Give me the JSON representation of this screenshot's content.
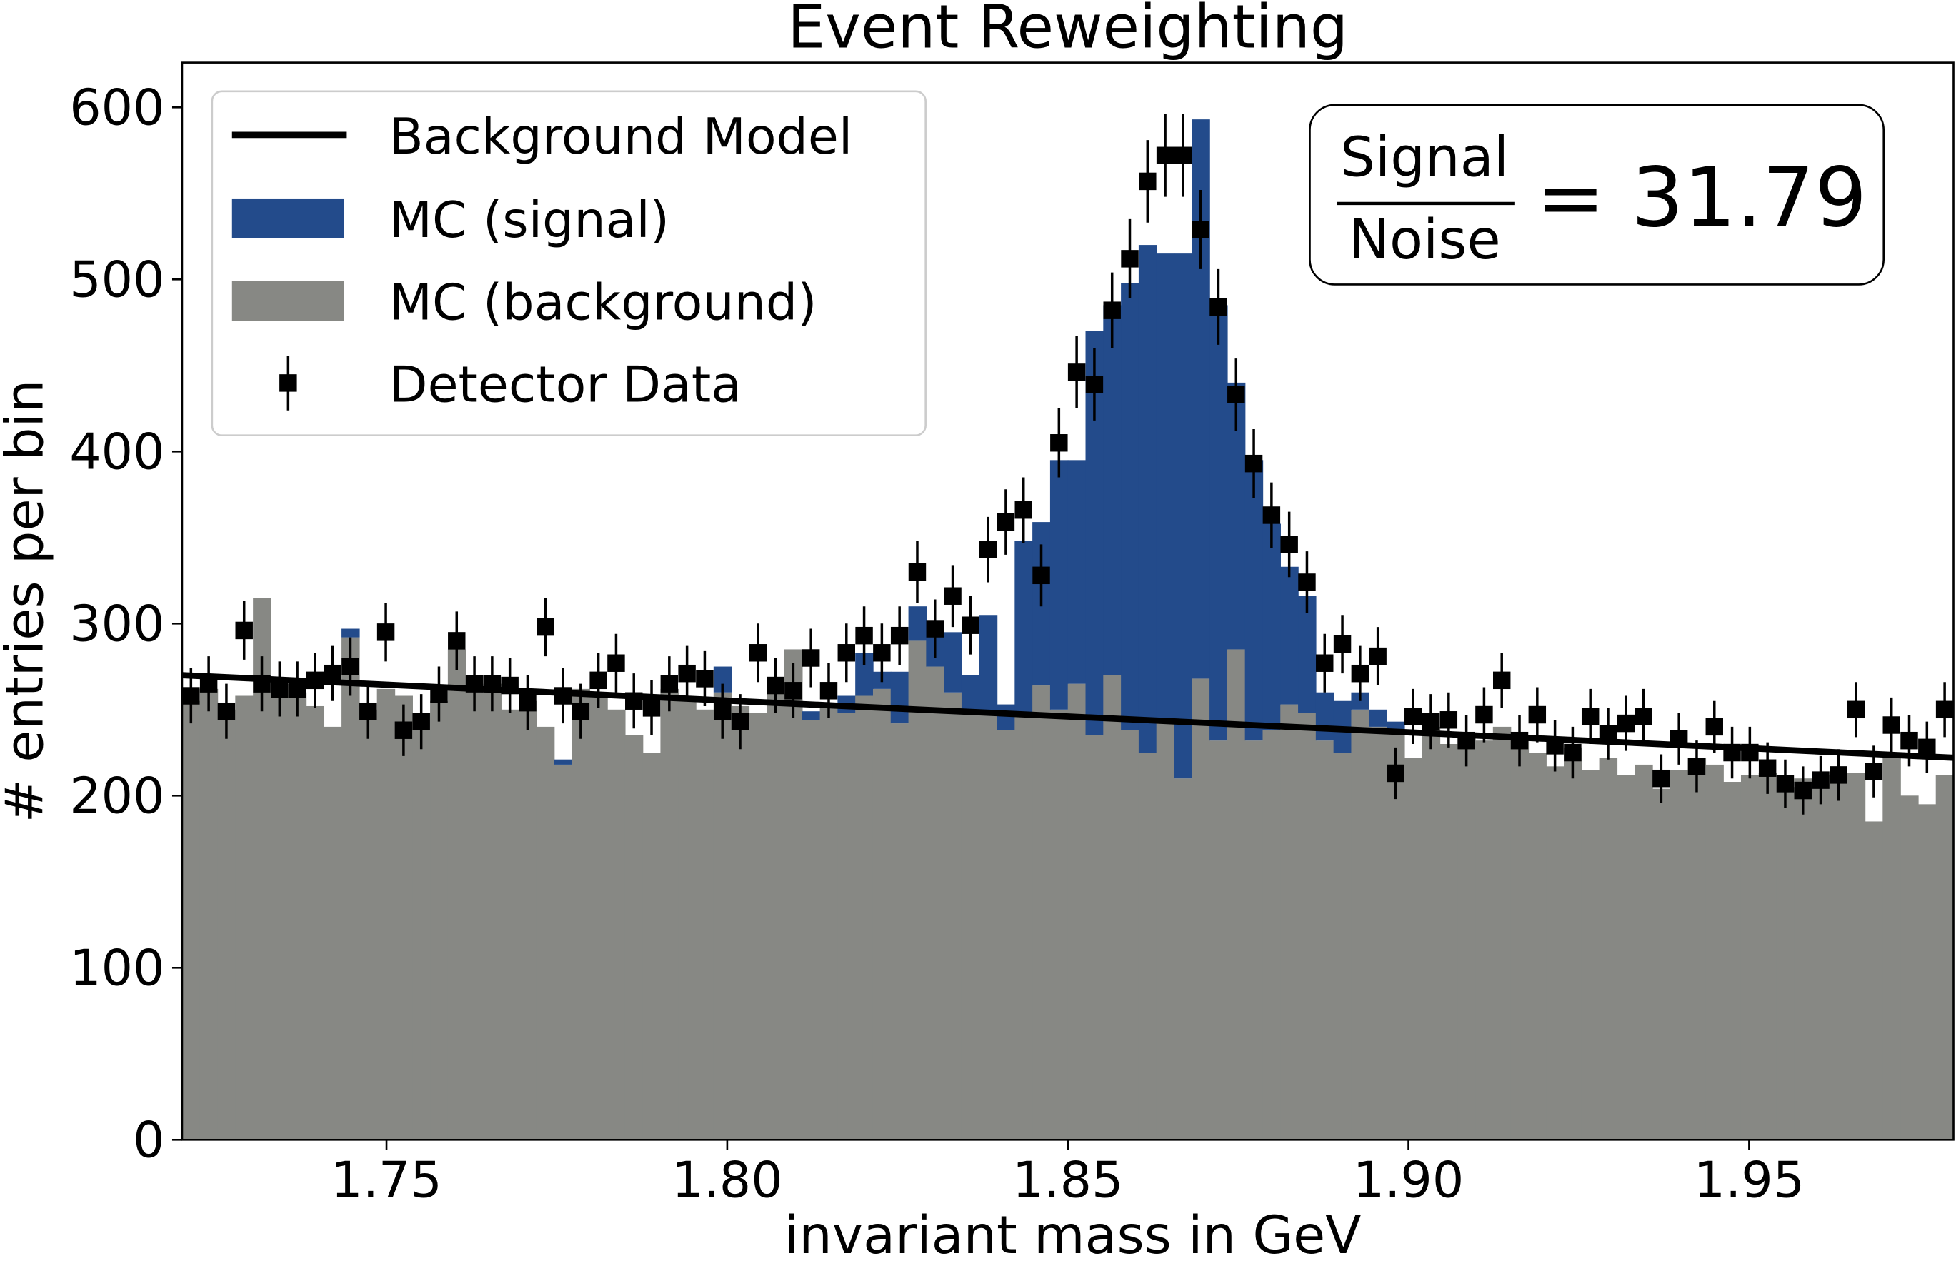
{
  "chart_data": {
    "type": "histogram",
    "title": "Event Reweighting",
    "xlabel": "invariant mass in GeV",
    "ylabel": "# entries per bin",
    "xlim": [
      1.72,
      1.98
    ],
    "ylim": [
      0,
      626
    ],
    "xticks": [
      1.75,
      {
        "value": 1.8,
        "label": "1.80"
      },
      1.85,
      {
        "value": 1.9,
        "label": "1.90"
      },
      1.95
    ],
    "yticks": [
      0,
      100,
      200,
      300,
      400,
      500,
      600
    ],
    "legend": "upper left",
    "bins": [
      1.72,
      1.7226,
      1.7252,
      1.7278,
      1.7304,
      1.733,
      1.7356,
      1.7382,
      1.7408,
      1.7434,
      1.746,
      1.7486,
      1.7512,
      1.7538,
      1.7564,
      1.759,
      1.7616,
      1.7642,
      1.7668,
      1.7694,
      1.772,
      1.7746,
      1.7772,
      1.7798,
      1.7824,
      1.785,
      1.7876,
      1.7902,
      1.7928,
      1.7954,
      1.798,
      1.8006,
      1.8032,
      1.8058,
      1.8084,
      1.811,
      1.8136,
      1.8162,
      1.8188,
      1.8214,
      1.824,
      1.8266,
      1.8292,
      1.8318,
      1.8344,
      1.837,
      1.8396,
      1.8422,
      1.8448,
      1.8474,
      1.85,
      1.8526,
      1.8552,
      1.8578,
      1.8604,
      1.863,
      1.8656,
      1.8682,
      1.8708,
      1.8734,
      1.876,
      1.8786,
      1.8812,
      1.8838,
      1.8864,
      1.889,
      1.8916,
      1.8942,
      1.8968,
      1.8994,
      1.902,
      1.9046,
      1.9072,
      1.9098,
      1.9124,
      1.915,
      1.9176,
      1.9202,
      1.9228,
      1.9254,
      1.928,
      1.9306,
      1.9332,
      1.9358,
      1.9384,
      1.941,
      1.9436,
      1.9462,
      1.9488,
      1.9514,
      1.954,
      1.9566,
      1.9592,
      1.9618,
      1.9644,
      1.967,
      1.9696,
      1.9722,
      1.9748,
      1.9774,
      1.98
    ],
    "series": [
      {
        "name": "MC (background)",
        "color": "#878884",
        "values": [
          255,
          262,
          250,
          258,
          315,
          265,
          260,
          252,
          240,
          292,
          250,
          262,
          258,
          248,
          255,
          285,
          260,
          265,
          250,
          255,
          240,
          218,
          262,
          258,
          250,
          235,
          225,
          262,
          256,
          250,
          260,
          252,
          248,
          262,
          285,
          244,
          252,
          248,
          258,
          262,
          242,
          290,
          275,
          260,
          250,
          248,
          238,
          248,
          264,
          250,
          265,
          235,
          270,
          238,
          225,
          245,
          210,
          268,
          232,
          285,
          232,
          238,
          253,
          248,
          232,
          225,
          250,
          240,
          238,
          222,
          240,
          230,
          235,
          232,
          240,
          232,
          225,
          217,
          228,
          215,
          222,
          212,
          218,
          204,
          215,
          222,
          218,
          208,
          212,
          213,
          205,
          210,
          212,
          212,
          213,
          185,
          222,
          200,
          195,
          212
        ]
      },
      {
        "name": "MC (signal)",
        "color": "#234b8b",
        "values": [
          0,
          0,
          0,
          0,
          0,
          0,
          0,
          0,
          0,
          5,
          0,
          0,
          0,
          0,
          0,
          0,
          0,
          0,
          0,
          0,
          0,
          3,
          0,
          0,
          0,
          0,
          0,
          0,
          0,
          0,
          15,
          0,
          0,
          0,
          0,
          5,
          0,
          10,
          25,
          10,
          30,
          20,
          27,
          35,
          20,
          57,
          15,
          100,
          95,
          145,
          130,
          235,
          215,
          260,
          295,
          270,
          305,
          325,
          253,
          155,
          163,
          120,
          80,
          68,
          28,
          30,
          10,
          10,
          5,
          0,
          0,
          0,
          0,
          0,
          0,
          0,
          0,
          0,
          0,
          0,
          0,
          0,
          0,
          0,
          0,
          0,
          0,
          0,
          0,
          0,
          0,
          0,
          0,
          0,
          0,
          0,
          0,
          0,
          0,
          0
        ]
      }
    ],
    "data": {
      "name": "Detector Data",
      "color": "#000000",
      "values": [
        258,
        265,
        249,
        296,
        265,
        262,
        262,
        267,
        271,
        275,
        249,
        295,
        238,
        243,
        259,
        290,
        265,
        265,
        264,
        254,
        298,
        258,
        249,
        267,
        277,
        255,
        251,
        265,
        271,
        268,
        249,
        243,
        283,
        264,
        261,
        280,
        261,
        283,
        293,
        283,
        293,
        330,
        297,
        316,
        299,
        343,
        359,
        366,
        328,
        405,
        446,
        439,
        482,
        512,
        557,
        572,
        572,
        529,
        484,
        433,
        393,
        363,
        346,
        324,
        277,
        288,
        271,
        281,
        213,
        246,
        243,
        244,
        232,
        247,
        267,
        232,
        247,
        229,
        225,
        246,
        236,
        242,
        246,
        210,
        233,
        217,
        240,
        225,
        225,
        216,
        207,
        203,
        209,
        212,
        250,
        214,
        241,
        232,
        228,
        250
      ],
      "errors": [
        16,
        16,
        16,
        17,
        16,
        16,
        16,
        16,
        16,
        17,
        16,
        17,
        15,
        16,
        16,
        17,
        16,
        16,
        16,
        16,
        17,
        16,
        16,
        16,
        17,
        16,
        16,
        16,
        16,
        16,
        16,
        16,
        17,
        16,
        16,
        17,
        16,
        17,
        17,
        17,
        17,
        18,
        17,
        18,
        17,
        19,
        19,
        19,
        18,
        20,
        21,
        21,
        22,
        23,
        24,
        24,
        24,
        23,
        22,
        21,
        20,
        19,
        19,
        18,
        17,
        17,
        16,
        17,
        15,
        16,
        16,
        16,
        15,
        16,
        16,
        15,
        16,
        15,
        15,
        16,
        15,
        16,
        16,
        14,
        15,
        15,
        15,
        15,
        15,
        15,
        14,
        14,
        14,
        15,
        16,
        15,
        16,
        15,
        15,
        16
      ]
    },
    "model": {
      "name": "Background Model",
      "color": "#000000",
      "x": [
        1.72,
        1.98
      ],
      "values": [
        270,
        222
      ]
    },
    "annotation": {
      "numerator": "Signal",
      "denominator": "Noise",
      "text": "= 31.79"
    }
  }
}
